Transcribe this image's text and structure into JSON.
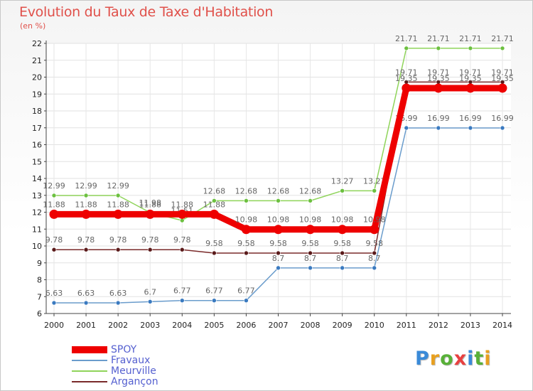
{
  "title": "Evolution du Taux de Taxe d'Habitation",
  "subtitle": "(en %)",
  "logo": {
    "letters": [
      "P",
      "r",
      "o",
      "x",
      "i",
      "t",
      "i"
    ],
    "colors": [
      "#3a8ad8",
      "#e8a020",
      "#58b038",
      "#e84040",
      "#3a8ad8",
      "#58b038",
      "#e8a020"
    ]
  },
  "chart_data": {
    "type": "line",
    "x": [
      2000,
      2001,
      2002,
      2003,
      2004,
      2005,
      2006,
      2007,
      2008,
      2009,
      2010,
      2011,
      2012,
      2013,
      2014
    ],
    "ylim": [
      6,
      22
    ],
    "yticks": [
      6,
      7,
      8,
      9,
      10,
      11,
      12,
      13,
      14,
      15,
      16,
      17,
      18,
      19,
      20,
      21,
      22
    ],
    "grid": true,
    "legend_position": "bottom-left",
    "series": [
      {
        "name": "Meurville",
        "color": "#8fd45a",
        "marker": "#6cc040",
        "width": 1.5,
        "values": [
          12.99,
          12.99,
          12.99,
          11.98,
          11.51,
          12.68,
          12.68,
          12.68,
          12.68,
          13.27,
          13.27,
          21.71,
          21.71,
          21.71,
          21.71
        ],
        "labels": [
          "12.99",
          "12.99",
          "12.99",
          "11.98",
          "11.51",
          "12.68",
          "12.68",
          "12.68",
          "12.68",
          "13.27",
          "13.27",
          "21.71",
          "21.71",
          "21.71",
          "21.71"
        ]
      },
      {
        "name": "Fravaux",
        "color": "#6a9ccc",
        "marker": "#3a7ac0",
        "width": 1.5,
        "values": [
          6.63,
          6.63,
          6.63,
          6.7,
          6.77,
          6.77,
          6.77,
          8.7,
          8.7,
          8.7,
          8.7,
          16.99,
          16.99,
          16.99,
          16.99
        ],
        "labels": [
          "6.63",
          "6.63",
          "6.63",
          "6.7",
          "6.77",
          "6.77",
          "6.77",
          "8.7",
          "8.7",
          "8.7",
          "8.7",
          "16.99",
          "16.99",
          "16.99",
          "16.99"
        ]
      },
      {
        "name": "Argançon",
        "color": "#7a2a2a",
        "marker": "#5a1a1a",
        "width": 1.5,
        "values": [
          9.78,
          9.78,
          9.78,
          9.78,
          9.78,
          9.58,
          9.58,
          9.58,
          9.58,
          9.58,
          9.58,
          19.71,
          19.71,
          19.71,
          19.71
        ],
        "labels": [
          "9.78",
          "9.78",
          "9.78",
          "9.78",
          "9.78",
          "9.58",
          "9.58",
          "9.58",
          "9.58",
          "9.58",
          "9.58",
          "19.71",
          "19.71",
          "19.71",
          "19.71"
        ]
      },
      {
        "name": "SPOY",
        "color": "#ee0000",
        "marker": "#ee0000",
        "width": 9,
        "values": [
          11.88,
          11.88,
          11.88,
          11.88,
          11.88,
          11.88,
          10.98,
          10.98,
          10.98,
          10.98,
          10.98,
          19.35,
          19.35,
          19.35,
          19.35
        ],
        "labels": [
          "11.88",
          "11.88",
          "11.88",
          "11.88",
          "11.88",
          "11.88",
          "10.98",
          "10.98",
          "10.98",
          "10.98",
          "10.98",
          "19.35",
          "19.35",
          "19.35",
          "19.35"
        ]
      }
    ],
    "legend_order": [
      "SPOY",
      "Fravaux",
      "Meurville",
      "Argançon"
    ]
  }
}
